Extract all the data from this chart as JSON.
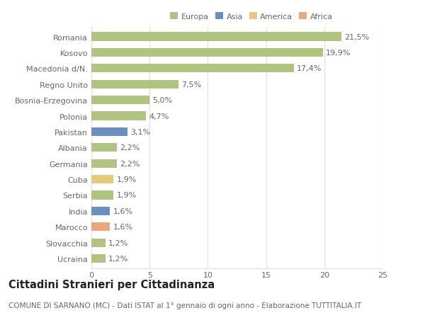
{
  "categories": [
    "Romania",
    "Kosovo",
    "Macedonia d/N.",
    "Regno Unito",
    "Bosnia-Erzegovina",
    "Polonia",
    "Pakistan",
    "Albania",
    "Germania",
    "Cuba",
    "Serbia",
    "India",
    "Marocco",
    "Slovacchia",
    "Ucraina"
  ],
  "values": [
    21.5,
    19.9,
    17.4,
    7.5,
    5.0,
    4.7,
    3.1,
    2.2,
    2.2,
    1.9,
    1.9,
    1.6,
    1.6,
    1.2,
    1.2
  ],
  "labels": [
    "21,5%",
    "19,9%",
    "17,4%",
    "7,5%",
    "5,0%",
    "4,7%",
    "3,1%",
    "2,2%",
    "2,2%",
    "1,9%",
    "1,9%",
    "1,6%",
    "1,6%",
    "1,2%",
    "1,2%"
  ],
  "colors": [
    "#aec47f",
    "#aec47f",
    "#aec47f",
    "#aec47f",
    "#aec47f",
    "#aec47f",
    "#6b8fbf",
    "#aec47f",
    "#aec47f",
    "#e8c97a",
    "#aec47f",
    "#6b8fbf",
    "#e8a87a",
    "#aec47f",
    "#aec47f"
  ],
  "legend_labels": [
    "Europa",
    "Asia",
    "America",
    "Africa"
  ],
  "legend_colors": [
    "#aec47f",
    "#6b8fbf",
    "#e8c97a",
    "#e8a87a"
  ],
  "title": "Cittadini Stranieri per Cittadinanza",
  "subtitle": "COMUNE DI SARNANO (MC) - Dati ISTAT al 1° gennaio di ogni anno - Elaborazione TUTTITALIA.IT",
  "xlim": [
    0,
    25
  ],
  "xticks": [
    0,
    5,
    10,
    15,
    20,
    25
  ],
  "background_color": "#ffffff",
  "grid_color": "#dddddd",
  "bar_height": 0.55,
  "label_fontsize": 8.0,
  "tick_fontsize": 8.0,
  "title_fontsize": 10.5,
  "subtitle_fontsize": 7.5
}
